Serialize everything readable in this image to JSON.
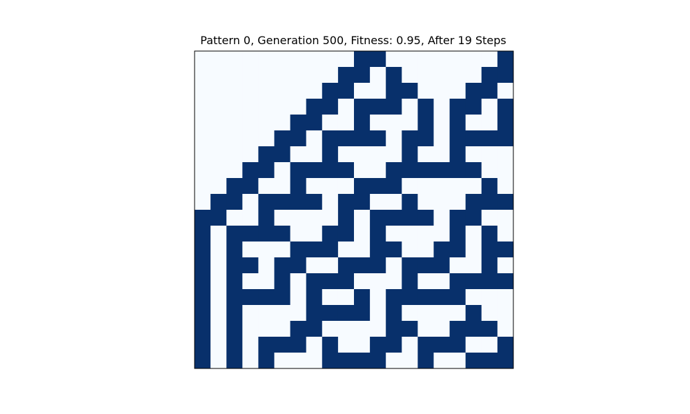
{
  "chart_data": {
    "type": "heatmap",
    "title": "Pattern 0, Generation 500, Fitness: 0.95, After 19 Steps",
    "xlabel": "",
    "ylabel": "",
    "rows": 20,
    "cols": 20,
    "colors": {
      "on": "#08306b",
      "off": "#f7fbff",
      "frame": "#000000"
    },
    "grid": [
      [
        0,
        0,
        0,
        0,
        0,
        0,
        0,
        0,
        0,
        0,
        1,
        1,
        0,
        0,
        0,
        0,
        0,
        0,
        0,
        1
      ],
      [
        0,
        0,
        0,
        0,
        0,
        0,
        0,
        0,
        0,
        1,
        1,
        0,
        1,
        0,
        0,
        0,
        0,
        0,
        1,
        1
      ],
      [
        0,
        0,
        0,
        0,
        0,
        0,
        0,
        0,
        1,
        1,
        0,
        0,
        1,
        1,
        0,
        0,
        0,
        1,
        1,
        0
      ],
      [
        0,
        0,
        0,
        0,
        0,
        0,
        0,
        1,
        1,
        0,
        1,
        1,
        1,
        0,
        1,
        0,
        1,
        1,
        0,
        1
      ],
      [
        0,
        0,
        0,
        0,
        0,
        0,
        1,
        1,
        0,
        0,
        1,
        0,
        0,
        0,
        1,
        0,
        1,
        0,
        0,
        1
      ],
      [
        0,
        0,
        0,
        0,
        0,
        1,
        1,
        0,
        1,
        1,
        1,
        1,
        0,
        1,
        1,
        0,
        1,
        1,
        1,
        1
      ],
      [
        0,
        0,
        0,
        0,
        1,
        1,
        0,
        0,
        1,
        0,
        0,
        0,
        0,
        1,
        0,
        0,
        1,
        0,
        0,
        0
      ],
      [
        0,
        0,
        0,
        1,
        1,
        0,
        1,
        1,
        1,
        1,
        0,
        0,
        1,
        1,
        1,
        1,
        1,
        1,
        0,
        0
      ],
      [
        0,
        0,
        1,
        1,
        0,
        0,
        1,
        0,
        0,
        0,
        1,
        1,
        1,
        0,
        0,
        0,
        0,
        0,
        1,
        0
      ],
      [
        0,
        1,
        1,
        0,
        1,
        1,
        1,
        1,
        0,
        1,
        1,
        0,
        0,
        1,
        0,
        0,
        0,
        1,
        1,
        1
      ],
      [
        1,
        1,
        0,
        0,
        1,
        0,
        0,
        0,
        0,
        1,
        0,
        1,
        1,
        1,
        1,
        0,
        1,
        1,
        0,
        0
      ],
      [
        1,
        0,
        1,
        1,
        1,
        1,
        0,
        0,
        1,
        1,
        0,
        1,
        0,
        0,
        0,
        0,
        1,
        0,
        1,
        0
      ],
      [
        1,
        0,
        1,
        0,
        0,
        0,
        1,
        1,
        1,
        0,
        0,
        1,
        1,
        0,
        0,
        1,
        1,
        0,
        1,
        1
      ],
      [
        1,
        0,
        1,
        1,
        0,
        1,
        1,
        0,
        0,
        1,
        1,
        1,
        0,
        1,
        1,
        1,
        0,
        0,
        1,
        0
      ],
      [
        1,
        0,
        1,
        0,
        0,
        1,
        0,
        1,
        1,
        1,
        0,
        0,
        0,
        1,
        0,
        0,
        1,
        1,
        1,
        1
      ],
      [
        1,
        0,
        1,
        1,
        1,
        1,
        0,
        1,
        0,
        0,
        1,
        0,
        1,
        1,
        1,
        1,
        1,
        0,
        0,
        0
      ],
      [
        1,
        0,
        1,
        0,
        0,
        0,
        0,
        1,
        1,
        1,
        1,
        0,
        1,
        0,
        0,
        0,
        0,
        1,
        0,
        0
      ],
      [
        1,
        0,
        1,
        0,
        0,
        0,
        1,
        1,
        0,
        0,
        0,
        0,
        1,
        1,
        0,
        0,
        1,
        1,
        1,
        0
      ],
      [
        1,
        0,
        1,
        0,
        1,
        1,
        1,
        0,
        1,
        0,
        0,
        1,
        1,
        0,
        1,
        1,
        1,
        0,
        0,
        1
      ],
      [
        1,
        0,
        1,
        0,
        1,
        0,
        0,
        0,
        1,
        1,
        1,
        1,
        0,
        0,
        1,
        0,
        0,
        1,
        1,
        1
      ]
    ]
  }
}
